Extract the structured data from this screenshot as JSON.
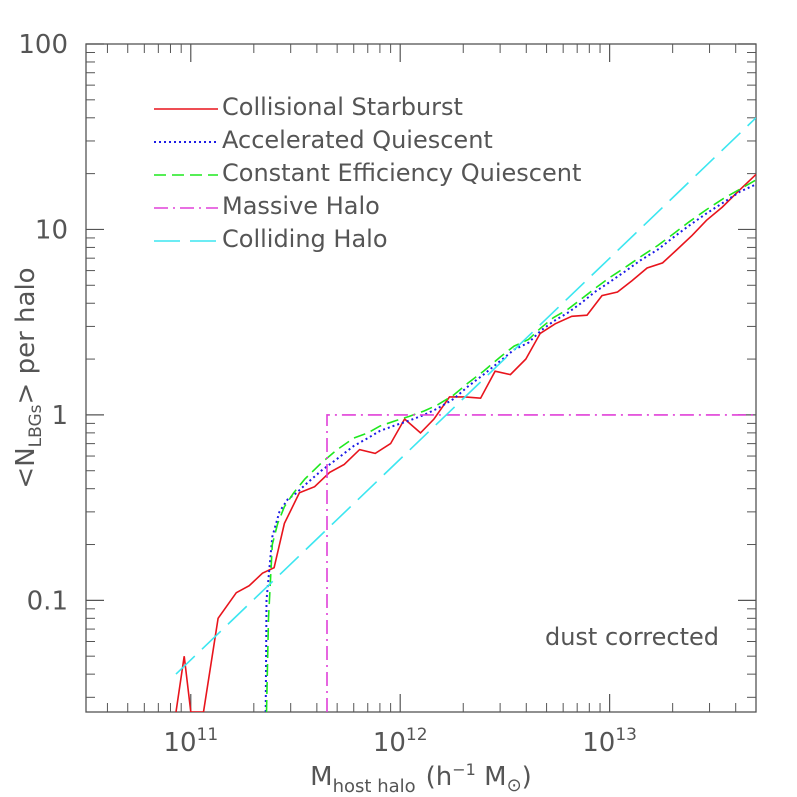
{
  "chart_data": {
    "type": "line",
    "title": "",
    "xlabel": {
      "main": "M",
      "sub": "host halo",
      "units_pre": "(h",
      "units_exp": "−1",
      "units_mid": " M",
      "units_sub": "⊙",
      "units_post": ")"
    },
    "ylabel": {
      "pre": "<N",
      "sub": "LBGs",
      "post": "> per halo"
    },
    "x_scale": "log",
    "y_scale": "log",
    "xlim": [
      31600000000.0,
      50000000000000.0
    ],
    "ylim": [
      0.025,
      100
    ],
    "x_ticks": [
      {
        "value": 100000000000.0,
        "base": "10",
        "exp": "11"
      },
      {
        "value": 1000000000000.0,
        "base": "10",
        "exp": "12"
      },
      {
        "value": 10000000000000.0,
        "base": "10",
        "exp": "13"
      }
    ],
    "y_ticks": [
      {
        "value": 0.1,
        "label": "0.1"
      },
      {
        "value": 1,
        "label": "1"
      },
      {
        "value": 10,
        "label": "10"
      },
      {
        "value": 100,
        "label": "100"
      }
    ],
    "annotation": "dust corrected",
    "legend_position": "top-left",
    "series": [
      {
        "name": "Collisional Starburst",
        "color": "#e8141c",
        "dash": "solid",
        "points": [
          [
            85000000000.0,
            0.025
          ],
          [
            93000000000.0,
            0.05
          ],
          [
            100000000000.0,
            0.025
          ],
          [
            115000000000.0,
            0.025
          ],
          [
            135000000000.0,
            0.08
          ],
          [
            165000000000.0,
            0.11
          ],
          [
            190000000000.0,
            0.12
          ],
          [
            220000000000.0,
            0.14
          ],
          [
            250000000000.0,
            0.15
          ],
          [
            280000000000.0,
            0.26
          ],
          [
            330000000000.0,
            0.38
          ],
          [
            390000000000.0,
            0.41
          ],
          [
            460000000000.0,
            0.49
          ],
          [
            540000000000.0,
            0.54
          ],
          [
            640000000000.0,
            0.65
          ],
          [
            760000000000.0,
            0.62
          ],
          [
            900000000000.0,
            0.7
          ],
          [
            1050000000000.0,
            0.95
          ],
          [
            1250000000000.0,
            0.8
          ],
          [
            1450000000000.0,
            0.95
          ],
          [
            1720000000000.0,
            1.25
          ],
          [
            2040000000000.0,
            1.25
          ],
          [
            2420000000000.0,
            1.23
          ],
          [
            2840000000000.0,
            1.72
          ],
          [
            3360000000000.0,
            1.65
          ],
          [
            3980000000000.0,
            2.0
          ],
          [
            4660000000000.0,
            2.75
          ],
          [
            5500000000000.0,
            3.1
          ],
          [
            6600000000000.0,
            3.4
          ],
          [
            7800000000000.0,
            3.45
          ],
          [
            9200000000000.0,
            4.4
          ],
          [
            10900000000000.0,
            4.6
          ],
          [
            12800000000000.0,
            5.3
          ],
          [
            15100000000000.0,
            6.2
          ],
          [
            17900000000000.0,
            6.6
          ],
          [
            21000000000000.0,
            7.8
          ],
          [
            24800000000000.0,
            9.3
          ],
          [
            29000000000000.0,
            11.2
          ],
          [
            34500000000000.0,
            13.2
          ],
          [
            41000000000000.0,
            16.0
          ],
          [
            50000000000000.0,
            19.8
          ]
        ]
      },
      {
        "name": "Accelerated Quiescent",
        "color": "#1c1ce6",
        "dash": "dotted",
        "points": [
          [
            228000000000.0,
            0.025
          ],
          [
            230000000000.0,
            0.1
          ],
          [
            245000000000.0,
            0.22
          ],
          [
            265000000000.0,
            0.3
          ],
          [
            290000000000.0,
            0.35
          ],
          [
            320000000000.0,
            0.38
          ],
          [
            360000000000.0,
            0.43
          ],
          [
            420000000000.0,
            0.5
          ],
          [
            500000000000.0,
            0.58
          ],
          [
            600000000000.0,
            0.68
          ],
          [
            700000000000.0,
            0.75
          ],
          [
            800000000000.0,
            0.82
          ],
          [
            950000000000.0,
            0.88
          ],
          [
            1100000000000.0,
            0.93
          ],
          [
            1300000000000.0,
            1.0
          ],
          [
            1500000000000.0,
            1.08
          ],
          [
            1800000000000.0,
            1.22
          ],
          [
            2100000000000.0,
            1.42
          ],
          [
            2500000000000.0,
            1.65
          ],
          [
            3000000000000.0,
            1.95
          ],
          [
            3500000000000.0,
            2.25
          ],
          [
            4100000000000.0,
            2.45
          ],
          [
            4700000000000.0,
            2.85
          ],
          [
            5400000000000.0,
            3.2
          ],
          [
            6300000000000.0,
            3.55
          ],
          [
            7300000000000.0,
            4.0
          ],
          [
            8500000000000.0,
            4.6
          ],
          [
            10000000000000.0,
            5.2
          ],
          [
            12000000000000.0,
            6.0
          ],
          [
            14000000000000.0,
            6.8
          ],
          [
            17000000000000.0,
            7.8
          ],
          [
            20000000000000.0,
            9.0
          ],
          [
            24000000000000.0,
            10.5
          ],
          [
            29000000000000.0,
            12.2
          ],
          [
            35000000000000.0,
            14.0
          ],
          [
            42000000000000.0,
            16.0
          ],
          [
            50000000000000.0,
            17.5
          ]
        ]
      },
      {
        "name": "Constant Efficiency Quiescent",
        "color": "#1ee81e",
        "dash": "dashed",
        "points": [
          [
            230000000000.0,
            0.025
          ],
          [
            235000000000.0,
            0.08
          ],
          [
            245000000000.0,
            0.2
          ],
          [
            260000000000.0,
            0.26
          ],
          [
            280000000000.0,
            0.32
          ],
          [
            310000000000.0,
            0.38
          ],
          [
            350000000000.0,
            0.45
          ],
          [
            420000000000.0,
            0.55
          ],
          [
            500000000000.0,
            0.65
          ],
          [
            600000000000.0,
            0.75
          ],
          [
            700000000000.0,
            0.8
          ],
          [
            800000000000.0,
            0.87
          ],
          [
            950000000000.0,
            0.93
          ],
          [
            1100000000000.0,
            0.98
          ],
          [
            1300000000000.0,
            1.05
          ],
          [
            1500000000000.0,
            1.13
          ],
          [
            1800000000000.0,
            1.28
          ],
          [
            2100000000000.0,
            1.48
          ],
          [
            2500000000000.0,
            1.72
          ],
          [
            3000000000000.0,
            2.05
          ],
          [
            3500000000000.0,
            2.35
          ],
          [
            4100000000000.0,
            2.55
          ],
          [
            4700000000000.0,
            2.95
          ],
          [
            5400000000000.0,
            3.35
          ],
          [
            6300000000000.0,
            3.7
          ],
          [
            7300000000000.0,
            4.2
          ],
          [
            8500000000000.0,
            4.8
          ],
          [
            10000000000000.0,
            5.5
          ],
          [
            12000000000000.0,
            6.3
          ],
          [
            14000000000000.0,
            7.1
          ],
          [
            17000000000000.0,
            8.2
          ],
          [
            20000000000000.0,
            9.4
          ],
          [
            24000000000000.0,
            11.0
          ],
          [
            29000000000000.0,
            12.8
          ],
          [
            35000000000000.0,
            14.7
          ],
          [
            42000000000000.0,
            16.5
          ],
          [
            50000000000000.0,
            18.5
          ]
        ]
      },
      {
        "name": "Massive Halo",
        "color": "#e040d8",
        "dash": "dashdot",
        "points": [
          [
            447000000000.0,
            0.025
          ],
          [
            447000000000.0,
            1.0
          ],
          [
            50000000000000.0,
            1.0
          ]
        ]
      },
      {
        "name": "Colliding Halo",
        "color": "#3ce6f0",
        "dash": "longdash",
        "points": [
          [
            85000000000.0,
            0.04
          ],
          [
            50000000000000.0,
            40
          ]
        ]
      }
    ]
  },
  "legend_sample_color_note": "",
  "annotation_color": "#555555"
}
